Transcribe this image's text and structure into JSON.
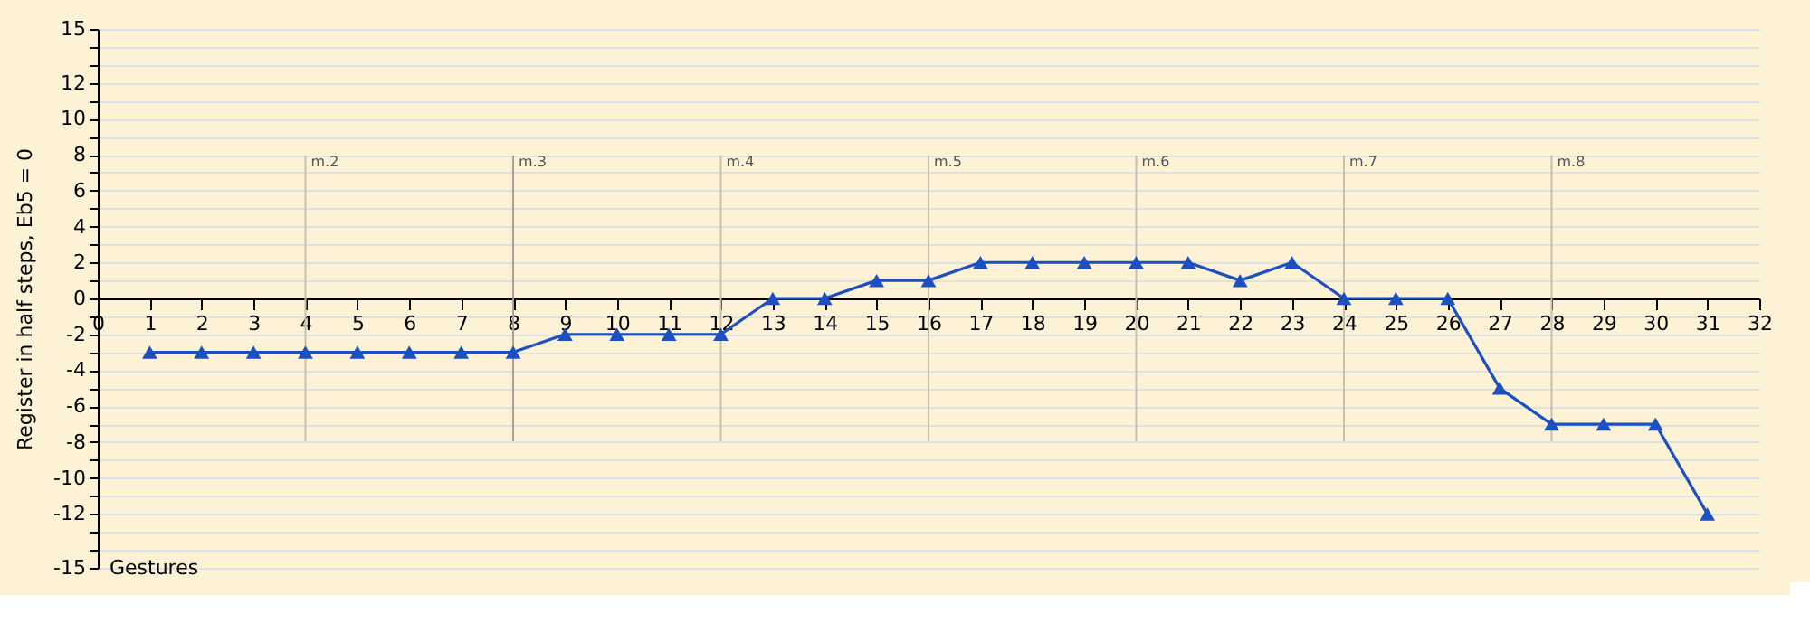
{
  "chart_data": {
    "type": "line",
    "xlabel": "Gestures",
    "ylabel": "Register in half steps, Eb5 = 0",
    "x": [
      1,
      2,
      3,
      4,
      5,
      6,
      7,
      8,
      9,
      10,
      11,
      12,
      13,
      14,
      15,
      16,
      17,
      18,
      19,
      20,
      21,
      22,
      23,
      24,
      25,
      26,
      27,
      28,
      29,
      30,
      31
    ],
    "series": [
      {
        "color": "#1c4fc0",
        "values": [
          -3,
          -3,
          -3,
          -3,
          -3,
          -3,
          -3,
          -3,
          -2,
          -2,
          -2,
          -2,
          0,
          0,
          1,
          1,
          2,
          2,
          2,
          2,
          2,
          1,
          2,
          0,
          0,
          0,
          -5,
          -7,
          -7,
          -7,
          -12
        ]
      }
    ],
    "xlim": [
      0,
      32
    ],
    "xticks": [
      0,
      1,
      2,
      3,
      4,
      5,
      6,
      7,
      8,
      9,
      10,
      11,
      12,
      13,
      14,
      15,
      16,
      17,
      18,
      19,
      20,
      21,
      22,
      23,
      24,
      25,
      26,
      27,
      28,
      29,
      30,
      31,
      32
    ],
    "ylim": [
      -15,
      15
    ],
    "yticks": [
      -15,
      {
        "value": -14,
        "label": null
      },
      {
        "value": -13,
        "label": null
      },
      -12,
      {
        "value": -11,
        "label": null
      },
      -10,
      {
        "value": -9,
        "label": null
      },
      -8,
      {
        "value": -7,
        "label": null
      },
      -6,
      {
        "value": -5,
        "label": null
      },
      -4,
      {
        "value": -3,
        "label": null
      },
      -2,
      {
        "value": -1,
        "label": null
      },
      0,
      {
        "value": 1,
        "label": null
      },
      2,
      {
        "value": 3,
        "label": null
      },
      4,
      {
        "value": 5,
        "label": null
      },
      6,
      {
        "value": 7,
        "label": null
      },
      8,
      {
        "value": 9,
        "label": null
      },
      10,
      {
        "value": 11,
        "label": null
      },
      12,
      {
        "value": 13,
        "label": null
      },
      {
        "value": 14,
        "label": null
      },
      15
    ],
    "ref_lines": [
      {
        "axis": "x",
        "value": 4,
        "label": "m.2",
        "color": "#c8c0ac"
      },
      {
        "axis": "x",
        "value": 8,
        "label": "m.3",
        "color": "#a8a294"
      },
      {
        "axis": "x",
        "value": 12,
        "label": "m.4",
        "color": "#c8c0ac"
      },
      {
        "axis": "x",
        "value": 16,
        "label": "m.5",
        "color": "#c8c0ac"
      },
      {
        "axis": "x",
        "value": 20,
        "label": "m.6",
        "color": "#c8c0ac"
      },
      {
        "axis": "x",
        "value": 24,
        "label": "m.7",
        "color": "#c8c0ac"
      },
      {
        "axis": "x",
        "value": 28,
        "label": "m.8",
        "color": "#c8c0ac"
      }
    ],
    "grid": "y",
    "marker": "triangle",
    "line_style": "solid",
    "legend": false
  }
}
